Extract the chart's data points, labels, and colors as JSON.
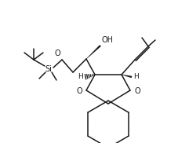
{
  "background": "#ffffff",
  "line_color": "#1a1a1a",
  "line_width": 1.1,
  "font_size": 6.5,
  "fig_width": 2.41,
  "fig_height": 1.82,
  "dpi": 100,
  "si_label": "Si",
  "o_label": "O",
  "oh_label": "OH",
  "h_label": "H"
}
